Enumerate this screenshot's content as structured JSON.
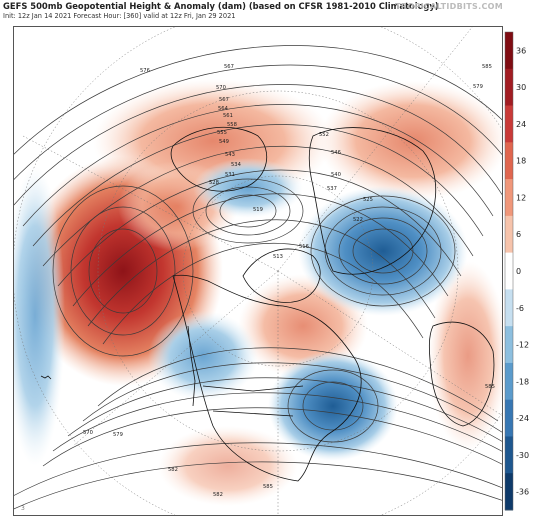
{
  "header": {
    "title": "GEFS 500mb Geopotential Height & Anomaly (dam) (based on CFSR 1981-2010 Climatology)",
    "subtitle": "Init: 12z Jan 14 2021   Forecast Hour: [360]   valid at 12z Fri, Jan 29 2021",
    "brand": "TROPICALTIDBITS.COM"
  },
  "map": {
    "projection": "north polar stereographic",
    "contour_labels": [
      "567",
      "576",
      "570",
      "567",
      "564",
      "561",
      "558",
      "555",
      "552",
      "549",
      "546",
      "543",
      "540",
      "537",
      "534",
      "531",
      "528",
      "525",
      "522",
      "519",
      "516",
      "513",
      "582",
      "585",
      "579",
      "585",
      "579",
      "570",
      "585",
      "582"
    ],
    "fine_print": "3"
  },
  "colorbar": {
    "ticks": [
      "36",
      "30",
      "24",
      "18",
      "12",
      "6",
      "0",
      "-6",
      "-12",
      "-18",
      "-24",
      "-30",
      "-36"
    ],
    "colors": [
      "#7f0c12",
      "#a11c22",
      "#c93a38",
      "#e0664f",
      "#f0977a",
      "#f6c3ab",
      "#ffffff",
      "#c6dff0",
      "#8dbfdf",
      "#5b9bcc",
      "#3777b3",
      "#1e578f",
      "#0e3a6a"
    ]
  }
}
